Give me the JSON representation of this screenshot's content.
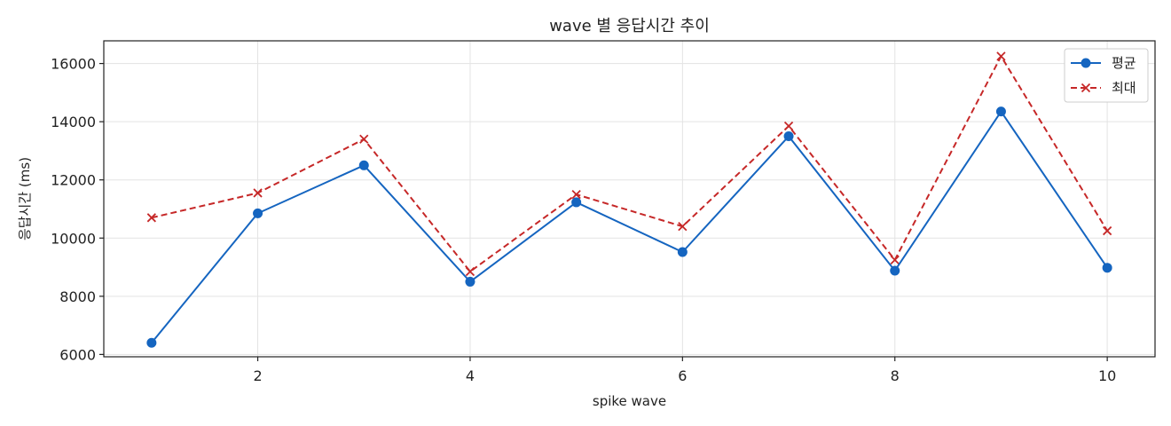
{
  "chart_data": {
    "type": "line",
    "title": "wave 별 응답시간 추이",
    "xlabel": "spike wave",
    "ylabel": "응답시간 (ms)",
    "x": [
      1,
      2,
      3,
      4,
      5,
      6,
      7,
      8,
      9,
      10
    ],
    "x_ticks": [
      2,
      4,
      6,
      8,
      10
    ],
    "y_ticks": [
      6000,
      8000,
      10000,
      12000,
      14000,
      16000
    ],
    "xlim": [
      0.55,
      10.45
    ],
    "ylim": [
      5920,
      16780
    ],
    "grid": true,
    "legend_position": "top-right",
    "series": [
      {
        "name": "평균",
        "color": "#1565c0",
        "marker": "circle",
        "line_style": "solid",
        "values": [
          6400,
          10850,
          12500,
          8500,
          11230,
          9520,
          13500,
          8880,
          14350,
          8980
        ]
      },
      {
        "name": "최대",
        "color": "#c62828",
        "marker": "x",
        "line_style": "dashed",
        "values": [
          10700,
          11550,
          13400,
          8850,
          11500,
          10400,
          13850,
          9250,
          16250,
          10250
        ]
      }
    ]
  }
}
